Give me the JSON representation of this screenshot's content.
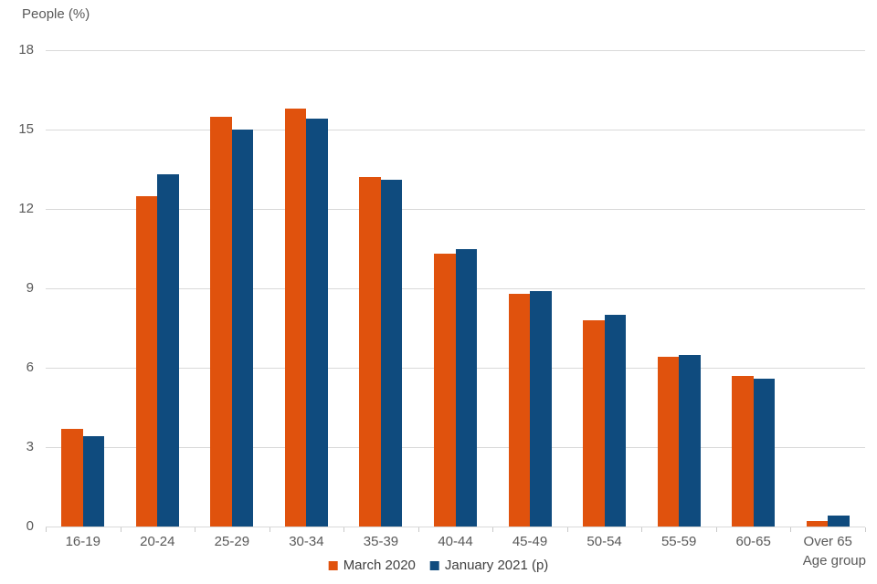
{
  "page": {
    "background": "#ffffff"
  },
  "chart_data": {
    "type": "bar",
    "title": "",
    "ylabel": "People (%)",
    "xlabel": "Age group",
    "ylim": [
      0,
      18
    ],
    "yticks": [
      0,
      3,
      6,
      9,
      12,
      15,
      18
    ],
    "grid": "horizontal",
    "legend_position": "bottom-center",
    "categories": [
      "16-19",
      "20-24",
      "25-29",
      "30-34",
      "35-39",
      "40-44",
      "45-49",
      "50-54",
      "55-59",
      "60-65",
      "Over 65"
    ],
    "series": [
      {
        "name": "March 2020",
        "color": "#E0520D",
        "values": [
          3.7,
          12.5,
          15.5,
          15.8,
          13.2,
          10.3,
          8.8,
          7.8,
          6.4,
          5.7,
          0.2
        ]
      },
      {
        "name": "January 2021 (p)",
        "color": "#0F4B7E",
        "values": [
          3.4,
          13.3,
          15.0,
          15.4,
          13.1,
          10.5,
          8.9,
          8.0,
          6.5,
          5.6,
          0.4
        ]
      }
    ],
    "colors": {
      "gridline": "#d9d9d9",
      "axis_line": "#d9d9d9",
      "tick_mark": "#c9c9c9",
      "tick_label_text": "#595959",
      "axis_title_text": "#595959",
      "legend_text": "#404040"
    }
  }
}
